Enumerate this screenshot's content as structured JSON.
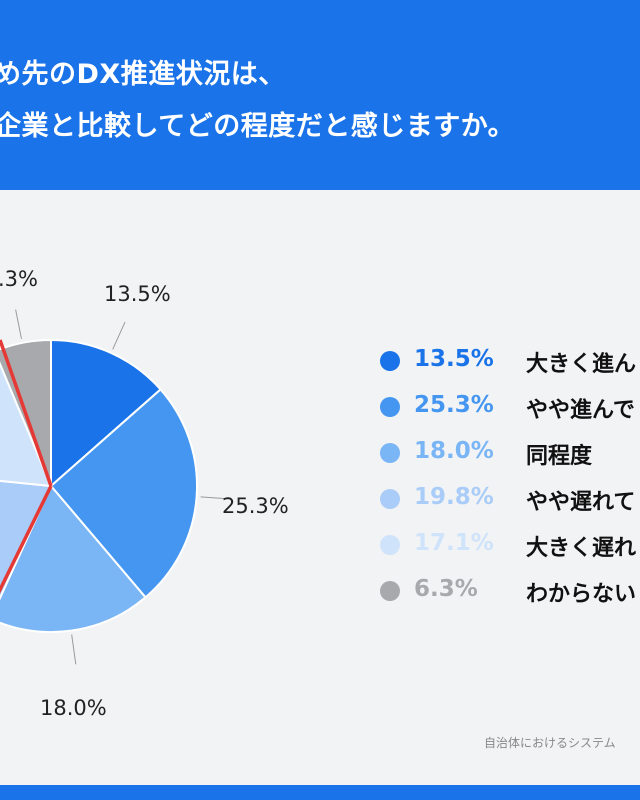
{
  "header": {
    "line1": "め先のDX推進状況は、",
    "line2": "企業と比較してどの程度だと感じますか。"
  },
  "chart_data": {
    "type": "pie",
    "slices": [
      {
        "label": "大きく進ん",
        "value": 13.5,
        "display": "13.5%",
        "color": "#1a73e8"
      },
      {
        "label": "やや進んで",
        "value": 25.3,
        "display": "25.3%",
        "color": "#4596f0"
      },
      {
        "label": "同程度",
        "value": 18.0,
        "display": "18.0%",
        "color": "#7ab5f5"
      },
      {
        "label": "やや遅れて",
        "value": 19.8,
        "display": "19.8%",
        "color": "#a9cdf8"
      },
      {
        "label": "大きく遅れ",
        "value": 17.1,
        "display": "17.1%",
        "color": "#cfe3fb"
      },
      {
        "label": "わからない",
        "value": 6.3,
        "display": "6.3%",
        "color": "#a7a9ad"
      }
    ],
    "visible_labels": [
      "13.5%",
      "25.3%",
      "18.0%",
      ".3%"
    ],
    "divider_color": "#e53935"
  },
  "source": "自治体におけるシステム"
}
